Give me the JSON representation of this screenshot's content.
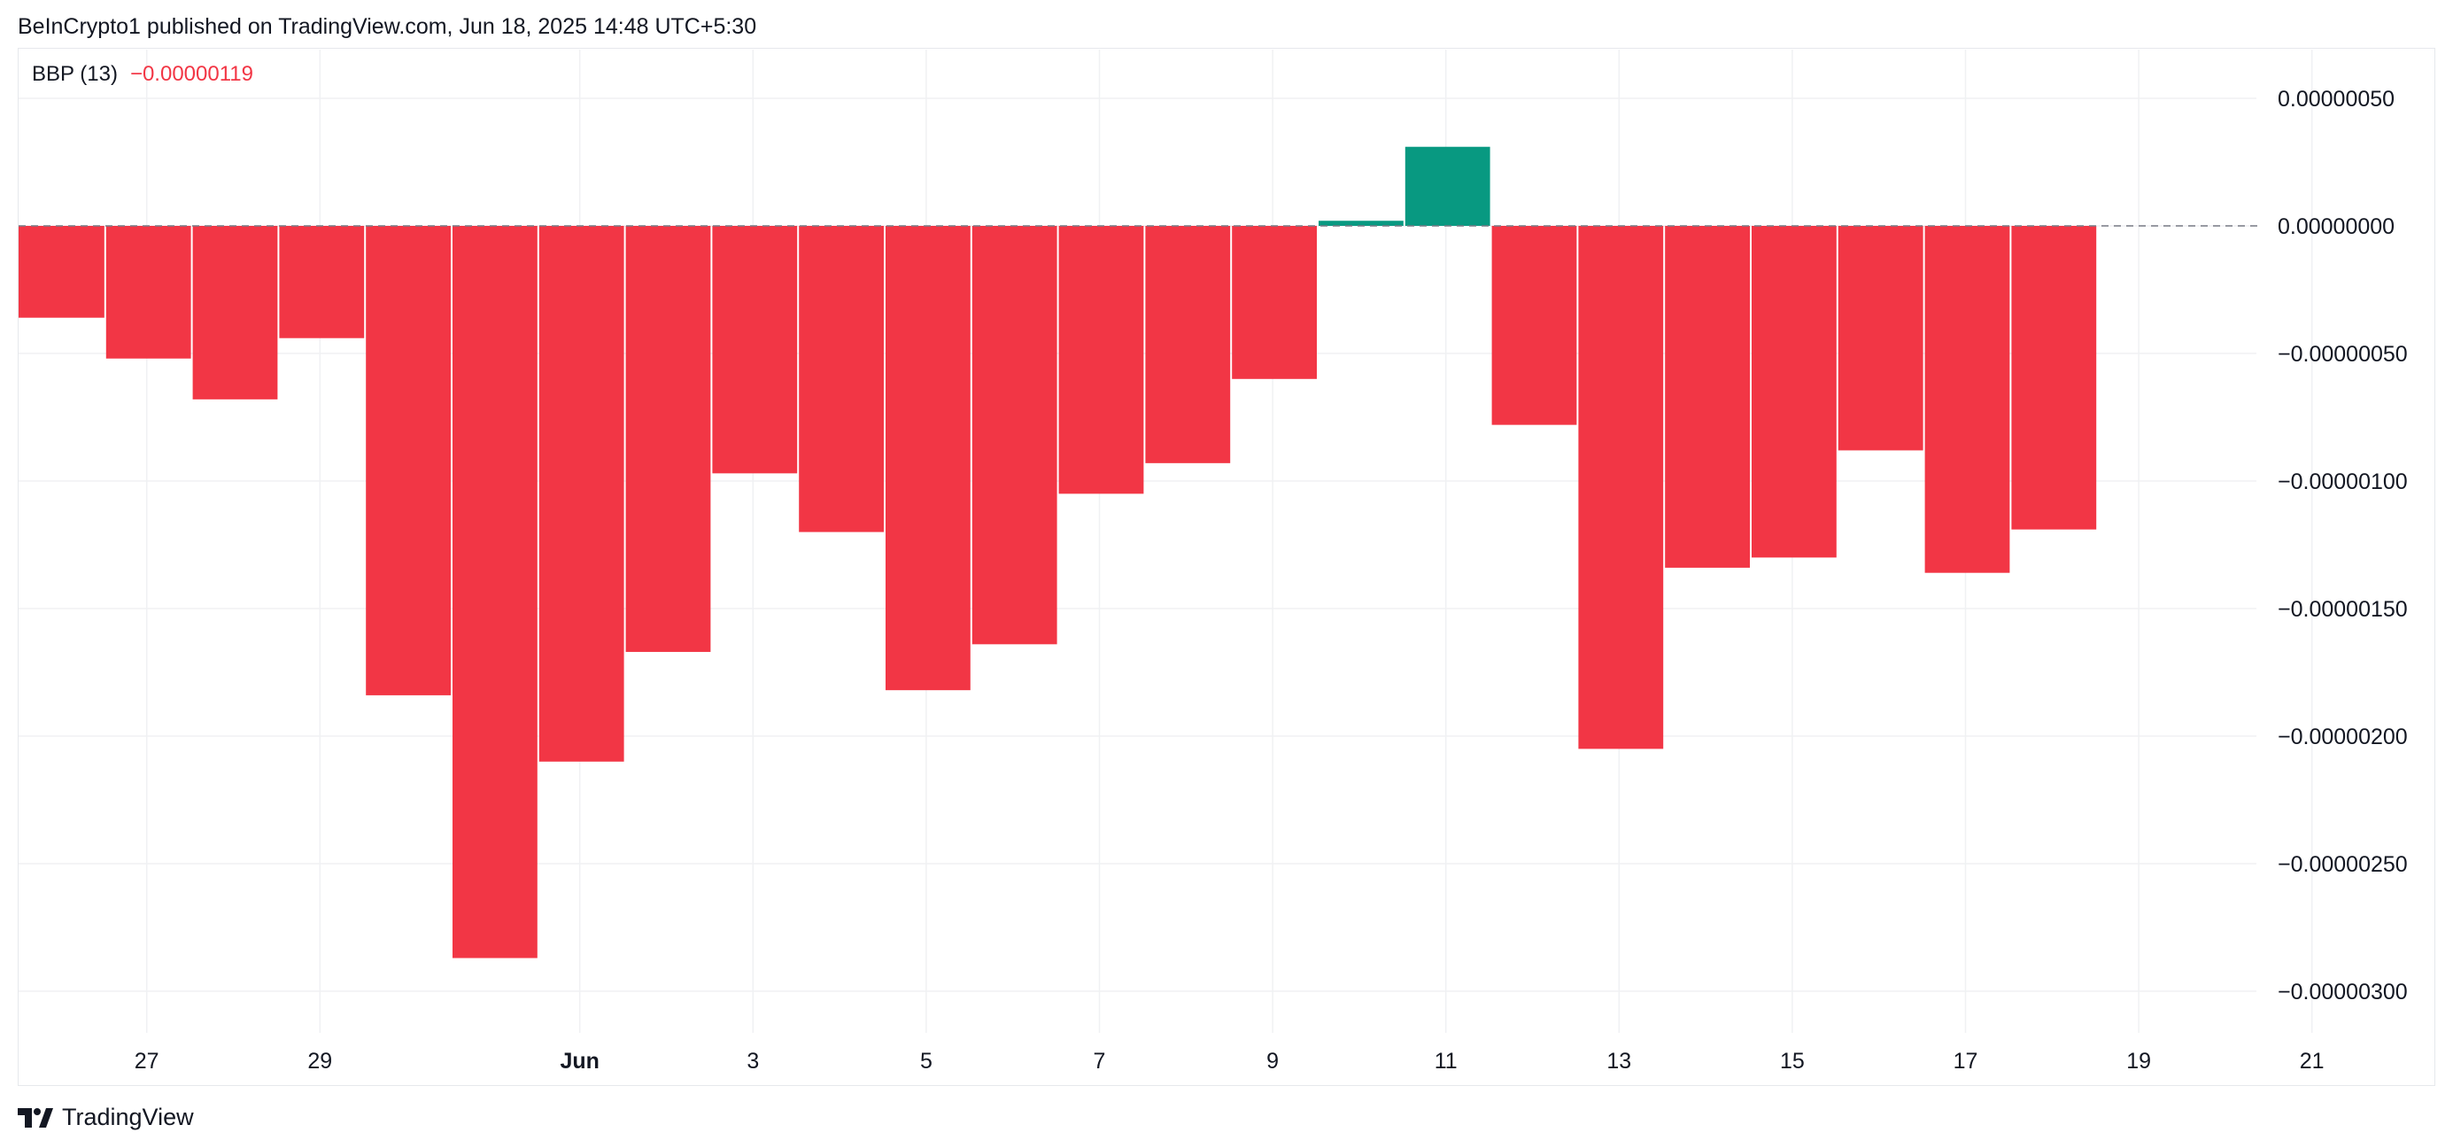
{
  "header": {
    "publisher_line": "BeInCrypto1 published on TradingView.com, Jun 18, 2025 14:48 UTC+5:30"
  },
  "legend": {
    "indicator": "BBP (13)",
    "value": "−0.00000119"
  },
  "footer": {
    "brand": "TradingView",
    "logo_icon": "tradingview-logo-icon"
  },
  "colors": {
    "positive": "#089981",
    "negative": "#f23645",
    "grid": "#f0f1f3",
    "zero_line": "#787b86"
  },
  "chart_data": {
    "type": "bar",
    "title": "",
    "xlabel": "",
    "ylabel": "",
    "ylim": [
      -3.1e-06,
      5e-07
    ],
    "grid": true,
    "y_ticks": [
      "0.00000050",
      "0.00000000",
      "−0.00000050",
      "−0.00000100",
      "−0.00000150",
      "−0.00000200",
      "−0.00000250",
      "−0.00000300"
    ],
    "y_tick_values": [
      5e-07,
      0,
      -5e-07,
      -1e-06,
      -1.5e-06,
      -2e-06,
      -2.5e-06,
      -3e-06
    ],
    "x_ticks": [
      "27",
      "29",
      "Jun",
      "3",
      "5",
      "7",
      "9",
      "11",
      "13",
      "15",
      "17",
      "19",
      "21"
    ],
    "categories": [
      "May 26",
      "May 27",
      "May 28",
      "May 29",
      "May 30",
      "May 31",
      "Jun 1",
      "Jun 2",
      "Jun 3",
      "Jun 4",
      "Jun 5",
      "Jun 6",
      "Jun 7",
      "Jun 8",
      "Jun 9",
      "Jun 10",
      "Jun 11",
      "Jun 12",
      "Jun 13",
      "Jun 14",
      "Jun 15",
      "Jun 16",
      "Jun 17",
      "Jun 18"
    ],
    "values": [
      -3.6e-07,
      -5.2e-07,
      -6.8e-07,
      -4.4e-07,
      -1.84e-06,
      -2.87e-06,
      -2.1e-06,
      -1.67e-06,
      -9.7e-07,
      -1.2e-06,
      -1.82e-06,
      -1.64e-06,
      -1.05e-06,
      -9.3e-07,
      -6e-07,
      2e-08,
      3.1e-07,
      -7.8e-07,
      -2.05e-06,
      -1.34e-06,
      -1.3e-06,
      -8.8e-07,
      -1.36e-06,
      -1.19e-06
    ]
  }
}
